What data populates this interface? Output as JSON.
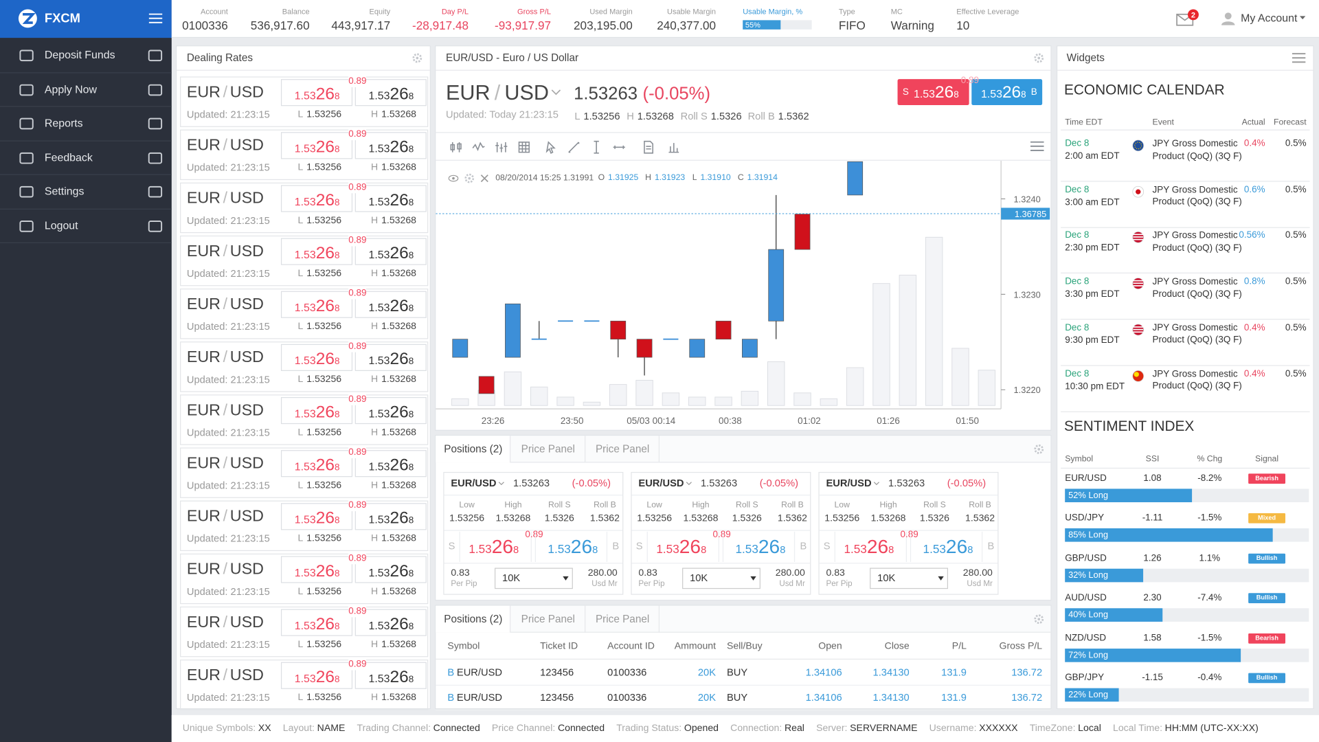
{
  "sidebar": {
    "brand": "FXCM",
    "menu": [
      "Deposit Funds",
      "Apply Now",
      "Reports",
      "Feedback",
      "Settings",
      "Logout"
    ]
  },
  "topbar": {
    "items": [
      {
        "label": "Account",
        "value": "0100336"
      },
      {
        "label": "Balance",
        "value": "536,917.60"
      },
      {
        "label": "Equity",
        "value": "443,917.17"
      },
      {
        "label": "Day P/L",
        "value": "-28,917.48",
        "color": "#e8455f"
      },
      {
        "label": "Gross P/L",
        "value": "-93,917.97",
        "color": "#e8455f"
      },
      {
        "label": "Used Margin",
        "value": "203,195.00"
      },
      {
        "label": "Usable Margin",
        "value": "240,377.00"
      },
      {
        "label": "Usable Margin, %",
        "value": "55%",
        "percent": 55,
        "color": "#3a9ad9"
      },
      {
        "label": "Type",
        "value": "FIFO"
      },
      {
        "label": "MC",
        "value": "Warning"
      },
      {
        "label": "Effective Leverage",
        "value": "10"
      }
    ],
    "mail_count": "2",
    "account": "My Account"
  },
  "dealing_rates": {
    "title": "Dealing Rates",
    "rows": [
      {
        "pair": [
          "EUR",
          "/",
          "USD"
        ],
        "updated": "Updated: 21:23:15",
        "spread": "0.89",
        "sell": [
          "1.53",
          "26",
          "8"
        ],
        "buy": [
          "1.53",
          "26",
          "8"
        ],
        "low": [
          "L",
          "1.53256"
        ],
        "high": [
          "H",
          "1.53268"
        ]
      },
      {
        "pair": [
          "EUR",
          "/",
          "USD"
        ],
        "updated": "Updated: 21:23:15",
        "spread": "0.89",
        "sell": [
          "1.53",
          "26",
          "8"
        ],
        "buy": [
          "1.53",
          "26",
          "8"
        ],
        "low": [
          "L",
          "1.53256"
        ],
        "high": [
          "H",
          "1.53268"
        ]
      },
      {
        "pair": [
          "EUR",
          "/",
          "USD"
        ],
        "updated": "Updated: 21:23:15",
        "spread": "0.89",
        "sell": [
          "1.53",
          "26",
          "8"
        ],
        "buy": [
          "1.53",
          "26",
          "8"
        ],
        "low": [
          "L",
          "1.53256"
        ],
        "high": [
          "H",
          "1.53268"
        ]
      },
      {
        "pair": [
          "EUR",
          "/",
          "USD"
        ],
        "updated": "Updated: 21:23:15",
        "spread": "0.89",
        "sell": [
          "1.53",
          "26",
          "8"
        ],
        "buy": [
          "1.53",
          "26",
          "8"
        ],
        "low": [
          "L",
          "1.53256"
        ],
        "high": [
          "H",
          "1.53268"
        ]
      },
      {
        "pair": [
          "EUR",
          "/",
          "USD"
        ],
        "updated": "Updated: 21:23:15",
        "spread": "0.89",
        "sell": [
          "1.53",
          "26",
          "8"
        ],
        "buy": [
          "1.53",
          "26",
          "8"
        ],
        "low": [
          "L",
          "1.53256"
        ],
        "high": [
          "H",
          "1.53268"
        ]
      },
      {
        "pair": [
          "EUR",
          "/",
          "USD"
        ],
        "updated": "Updated: 21:23:15",
        "spread": "0.89",
        "sell": [
          "1.53",
          "26",
          "8"
        ],
        "buy": [
          "1.53",
          "26",
          "8"
        ],
        "low": [
          "L",
          "1.53256"
        ],
        "high": [
          "H",
          "1.53268"
        ]
      },
      {
        "pair": [
          "EUR",
          "/",
          "USD"
        ],
        "updated": "Updated: 21:23:15",
        "spread": "0.89",
        "sell": [
          "1.53",
          "26",
          "8"
        ],
        "buy": [
          "1.53",
          "26",
          "8"
        ],
        "low": [
          "L",
          "1.53256"
        ],
        "high": [
          "H",
          "1.53268"
        ]
      },
      {
        "pair": [
          "EUR",
          "/",
          "USD"
        ],
        "updated": "Updated: 21:23:15",
        "spread": "0.89",
        "sell": [
          "1.53",
          "26",
          "8"
        ],
        "buy": [
          "1.53",
          "26",
          "8"
        ],
        "low": [
          "L",
          "1.53256"
        ],
        "high": [
          "H",
          "1.53268"
        ]
      },
      {
        "pair": [
          "EUR",
          "/",
          "USD"
        ],
        "updated": "Updated: 21:23:15",
        "spread": "0.89",
        "sell": [
          "1.53",
          "26",
          "8"
        ],
        "buy": [
          "1.53",
          "26",
          "8"
        ],
        "low": [
          "L",
          "1.53256"
        ],
        "high": [
          "H",
          "1.53268"
        ]
      },
      {
        "pair": [
          "EUR",
          "/",
          "USD"
        ],
        "updated": "Updated: 21:23:15",
        "spread": "0.89",
        "sell": [
          "1.53",
          "26",
          "8"
        ],
        "buy": [
          "1.53",
          "26",
          "8"
        ],
        "low": [
          "L",
          "1.53256"
        ],
        "high": [
          "H",
          "1.53268"
        ]
      },
      {
        "pair": [
          "EUR",
          "/",
          "USD"
        ],
        "updated": "Updated: 21:23:15",
        "spread": "0.89",
        "sell": [
          "1.53",
          "26",
          "8"
        ],
        "buy": [
          "1.53",
          "26",
          "8"
        ],
        "low": [
          "L",
          "1.53256"
        ],
        "high": [
          "H",
          "1.53268"
        ]
      },
      {
        "pair": [
          "EUR",
          "/",
          "USD"
        ],
        "updated": "Updated: 21:23:15",
        "spread": "0.89",
        "sell": [
          "1.53",
          "26",
          "8"
        ],
        "buy": [
          "1.53",
          "26",
          "8"
        ],
        "low": [
          "L",
          "1.53256"
        ],
        "high": [
          "H",
          "1.53268"
        ]
      }
    ]
  },
  "chart_panel": {
    "title": "EUR/USD - Euro / US Dollar",
    "symbol": [
      "EUR",
      "/",
      "USD"
    ],
    "price": "1.53263",
    "change": "(-0.05%)",
    "updated": "Updated: Today 21:23:15",
    "stats": [
      [
        "L",
        "1.53256"
      ],
      [
        "H",
        "1.53268"
      ],
      [
        "Roll S",
        "1.5326"
      ],
      [
        "Roll B",
        "1.5362"
      ]
    ],
    "sell": {
      "side": "S",
      "price": [
        "1.53",
        "26",
        "8"
      ]
    },
    "buy": {
      "side": "B",
      "price": [
        "1.53",
        "26",
        "8"
      ]
    },
    "spread": "0.89",
    "info": {
      "datetime": "08/20/2014 15:25 1.31991",
      "ohlc": [
        [
          "O",
          "1.31925"
        ],
        [
          "H",
          "1.31923"
        ],
        [
          "L",
          "1.31910"
        ],
        [
          "C",
          "1.31914"
        ]
      ]
    }
  },
  "chart_data": {
    "type": "candlestick",
    "ylim": [
      1.3218,
      1.3244
    ],
    "yticks": [
      {
        "value": 1.322,
        "label": "1.3220"
      },
      {
        "value": 1.323,
        "label": "1.3230"
      },
      {
        "value": 1.324,
        "label": "1.3240"
      }
    ],
    "time_labels": [
      "23:26",
      "23:50",
      "05/03 00:14",
      "00:38",
      "01:02",
      "01:26",
      "01:50"
    ],
    "open": [
      1.32234,
      1.32214,
      1.32234,
      1.32253,
      1.32272,
      1.32272,
      1.32272,
      1.32253,
      1.32253,
      1.32234,
      1.32272,
      1.32234,
      1.32272,
      1.32384,
      null,
      1.32404,
      null,
      null,
      null,
      null,
      null
    ],
    "high": [
      1.32253,
      1.32214,
      1.3229,
      1.32272,
      1.32272,
      1.32272,
      1.32272,
      1.32253,
      1.32253,
      1.32253,
      1.32272,
      1.32253,
      1.32404,
      1.32384,
      null,
      1.32439,
      null,
      null,
      null,
      null,
      null
    ],
    "low": [
      1.32234,
      1.32196,
      1.32234,
      1.32253,
      1.32272,
      1.32272,
      1.32234,
      1.32215,
      1.32253,
      1.32234,
      1.32253,
      1.32234,
      1.32253,
      1.32347,
      null,
      1.32404,
      null,
      null,
      null,
      null,
      null
    ],
    "close": [
      1.32253,
      1.32196,
      1.3229,
      1.32253,
      1.32272,
      1.32272,
      1.32253,
      1.32234,
      1.32253,
      1.32253,
      1.32253,
      1.32253,
      1.32347,
      1.32347,
      null,
      1.32439,
      null,
      null,
      null,
      null,
      null
    ],
    "volume": [
      8,
      18,
      40,
      22,
      10,
      4,
      25,
      30,
      15,
      10,
      10,
      17,
      52,
      15,
      8,
      45,
      145,
      155,
      200,
      68,
      42
    ],
    "last_price_label": "1.36785",
    "up_color": "#3d8fd8",
    "down_color": "#d0111b"
  },
  "price_panels": {
    "tabs": [
      "Positions (2)",
      "Price Panel",
      "Price Panel"
    ],
    "cards": [
      {
        "pair": "EUR/USD",
        "price": "1.53263",
        "change": "(-0.05%)",
        "stats": [
          [
            "Low",
            "1.53256"
          ],
          [
            "High",
            "1.53268"
          ],
          [
            "Roll S",
            "1.5326"
          ],
          [
            "Roll B",
            "1.5362"
          ]
        ],
        "sell": {
          "side": "S",
          "price": [
            "1.53",
            "26",
            "8"
          ]
        },
        "buy": {
          "side": "B",
          "price": [
            "1.53",
            "26",
            "8"
          ]
        },
        "spread": "0.89",
        "pip": [
          "0.83",
          "Per Pip"
        ],
        "amount": "10K",
        "margin": [
          "280.00",
          "Usd Mr"
        ]
      },
      {
        "pair": "EUR/USD",
        "price": "1.53263",
        "change": "(-0.05%)",
        "stats": [
          [
            "Low",
            "1.53256"
          ],
          [
            "High",
            "1.53268"
          ],
          [
            "Roll S",
            "1.5326"
          ],
          [
            "Roll B",
            "1.5362"
          ]
        ],
        "sell": {
          "side": "S",
          "price": [
            "1.53",
            "26",
            "8"
          ]
        },
        "buy": {
          "side": "B",
          "price": [
            "1.53",
            "26",
            "8"
          ]
        },
        "spread": "0.89",
        "pip": [
          "0.83",
          "Per Pip"
        ],
        "amount": "10K",
        "margin": [
          "280.00",
          "Usd Mr"
        ]
      },
      {
        "pair": "EUR/USD",
        "price": "1.53263",
        "change": "(-0.05%)",
        "stats": [
          [
            "Low",
            "1.53256"
          ],
          [
            "High",
            "1.53268"
          ],
          [
            "Roll S",
            "1.5326"
          ],
          [
            "Roll B",
            "1.5362"
          ]
        ],
        "sell": {
          "side": "S",
          "price": [
            "1.53",
            "26",
            "8"
          ]
        },
        "buy": {
          "side": "B",
          "price": [
            "1.53",
            "26",
            "8"
          ]
        },
        "spread": "0.89",
        "pip": [
          "0.83",
          "Per Pip"
        ],
        "amount": "10K",
        "margin": [
          "280.00",
          "Usd Mr"
        ]
      }
    ]
  },
  "positions": {
    "tabs": [
      "Positions (2)",
      "Price Panel",
      "Price Panel"
    ],
    "columns": [
      "Symbol",
      "Ticket ID",
      "Account ID",
      "Ammount",
      "Sell/Buy",
      "Open",
      "Close",
      "P/L",
      "Gross P/L"
    ],
    "rows": [
      [
        "B",
        "EUR/USD",
        "123456",
        "0100336",
        "20K",
        "BUY",
        "1.34106",
        "1.34130",
        "131.9",
        "136.72"
      ],
      [
        "B",
        "EUR/USD",
        "123456",
        "0100336",
        "20K",
        "BUY",
        "1.34106",
        "1.34130",
        "131.9",
        "136.72"
      ]
    ]
  },
  "widgets": {
    "title": "Widgets",
    "calendar": {
      "title": "ECONOMIC CALENDAR",
      "columns": [
        "Time EDT",
        "Event",
        "Actual",
        "Forecast"
      ],
      "rows": [
        {
          "date": "Dec 8",
          "time": "2:00 am EDT",
          "flag": "eu",
          "event": "JPY Gross Domestic Product (QoQ) (3Q F)",
          "actual": "0.4%",
          "actual_color": "#e8455f",
          "forecast": "0.5%"
        },
        {
          "date": "Dec 8",
          "time": "3:00 am EDT",
          "flag": "jp",
          "event": "JPY Gross Domestic Product (QoQ) (3Q F)",
          "actual": "0.6%",
          "actual_color": "#3a9ad9",
          "forecast": "0.5%"
        },
        {
          "date": "Dec 8",
          "time": "2:30 pm EDT",
          "flag": "us",
          "event": "JPY Gross Domestic Product (QoQ) (3Q F)",
          "actual": "0.56%",
          "actual_color": "#3a9ad9",
          "forecast": "0.5%"
        },
        {
          "date": "Dec 8",
          "time": "3:30 pm EDT",
          "flag": "us",
          "event": "JPY Gross Domestic Product (QoQ) (3Q F)",
          "actual": "0.8%",
          "actual_color": "#3a9ad9",
          "forecast": "0.5%"
        },
        {
          "date": "Dec 8",
          "time": "9:30 pm EDT",
          "flag": "us",
          "event": "JPY Gross Domestic Product (QoQ) (3Q F)",
          "actual": "0.4%",
          "actual_color": "#e8455f",
          "forecast": "0.5%"
        },
        {
          "date": "Dec 8",
          "time": "10:30 pm EDT",
          "flag": "cn",
          "event": "JPY Gross Domestic Product (QoQ) (3Q F)",
          "actual": "0.4%",
          "actual_color": "#e8455f",
          "forecast": "0.5%"
        }
      ]
    },
    "sentiment": {
      "title": "SENTIMENT INDEX",
      "columns": [
        "Symbol",
        "SSI",
        "% Chg",
        "Signal"
      ],
      "rows": [
        {
          "symbol": "EUR/USD",
          "ssi": "1.08",
          "chg": "-8.2%",
          "signal": "Bearish",
          "signal_color": "#f0445c",
          "long": 52,
          "long_label": "52% Long"
        },
        {
          "symbol": "USD/JPY",
          "ssi": "-1.11",
          "chg": "-1.5%",
          "signal": "Mixed",
          "signal_color": "#f5b942",
          "long": 85,
          "long_label": "85% Long"
        },
        {
          "symbol": "GBP/USD",
          "ssi": "1.26",
          "chg": "1.1%",
          "signal": "Bullish",
          "signal_color": "#3a9ad9",
          "long": 32,
          "long_label": "32% Long"
        },
        {
          "symbol": "AUD/USD",
          "ssi": "2.30",
          "chg": "-7.4%",
          "signal": "Bullish",
          "signal_color": "#3a9ad9",
          "long": 40,
          "long_label": "40% Long"
        },
        {
          "symbol": "NZD/USD",
          "ssi": "1.58",
          "chg": "-1.5%",
          "signal": "Bearish",
          "signal_color": "#f0445c",
          "long": 72,
          "long_label": "72% Long"
        },
        {
          "symbol": "GBP/JPY",
          "ssi": "-1.15",
          "chg": "-0.4%",
          "signal": "Bullish",
          "signal_color": "#3a9ad9",
          "long": 22,
          "long_label": "22% Long"
        }
      ]
    }
  },
  "status_bar": [
    [
      "Unique Symbols:",
      "XX"
    ],
    [
      "Layout:",
      "NAME"
    ],
    [
      "Trading Channel:",
      "Connected"
    ],
    [
      "Price Channel:",
      "Connected"
    ],
    [
      "Trading Status:",
      "Opened"
    ],
    [
      "Connection:",
      "Real"
    ],
    [
      "Server:",
      "SERVERNAME"
    ],
    [
      "Username:",
      "XXXXXX"
    ],
    [
      "TimeZone:",
      "Local"
    ],
    [
      "Local Time:",
      "HH:MM (UTC-XX:XX)"
    ]
  ]
}
